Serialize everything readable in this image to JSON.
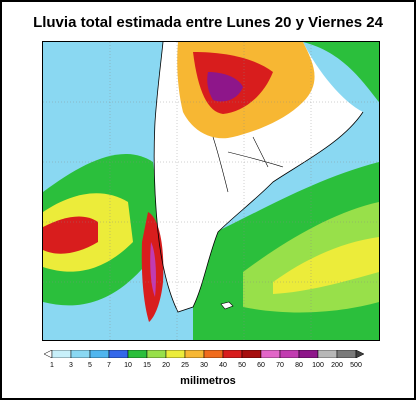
{
  "title": "Lluvia total estimada entre Lunes 20 y Viernes 24",
  "legend": {
    "units": "milimetros",
    "ticks": [
      "1",
      "3",
      "5",
      "7",
      "10",
      "15",
      "20",
      "25",
      "30",
      "40",
      "50",
      "60",
      "70",
      "80",
      "100",
      "200",
      "500"
    ],
    "colors": [
      "#ffffff",
      "#c8f0fa",
      "#8ad8f2",
      "#4fb5ee",
      "#3468ea",
      "#2bbf3c",
      "#98e04a",
      "#ecec3a",
      "#f7b733",
      "#f06b1c",
      "#d81d1d",
      "#a60e0e",
      "#e266c8",
      "#c13bb0",
      "#8e168a",
      "#b7b7b7",
      "#7a7a7a",
      "#404040"
    ]
  },
  "palette": {
    "ocean": "#4fb5ee",
    "land_dry": "#ffffff",
    "coast": "#000000",
    "grid": "#888888"
  }
}
